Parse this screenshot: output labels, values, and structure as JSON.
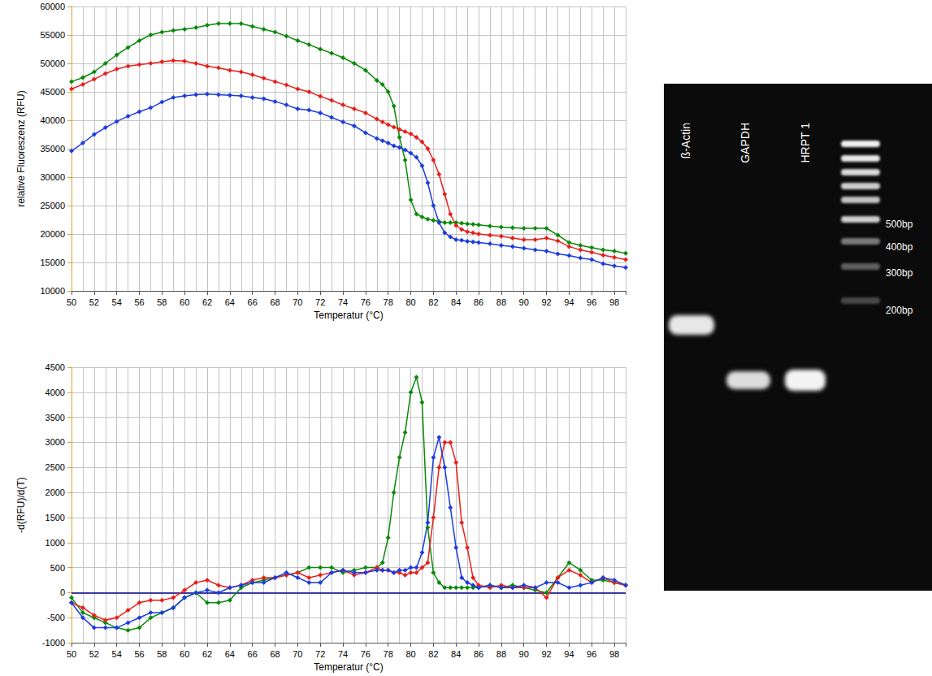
{
  "chart_data": [
    {
      "type": "line",
      "x_label": "Temperatur (°C)",
      "y_label": "relative Fluoreszenz (RFU)",
      "marker": "diamond",
      "grid": true,
      "xlim": [
        50,
        99
      ],
      "xticks": [
        50,
        52,
        54,
        56,
        58,
        60,
        62,
        64,
        66,
        68,
        70,
        72,
        74,
        76,
        78,
        80,
        82,
        84,
        86,
        88,
        90,
        92,
        94,
        96,
        98
      ],
      "ylim": [
        10000,
        60000
      ],
      "yticks": [
        10000,
        15000,
        20000,
        25000,
        30000,
        35000,
        40000,
        45000,
        50000,
        55000,
        60000
      ],
      "x": [
        50,
        51,
        52,
        53,
        54,
        55,
        56,
        57,
        58,
        59,
        60,
        61,
        62,
        63,
        64,
        65,
        66,
        67,
        68,
        69,
        70,
        71,
        72,
        73,
        74,
        75,
        76,
        77,
        77.5,
        78,
        78.5,
        79,
        79.5,
        80,
        80.5,
        81,
        81.5,
        82,
        82.5,
        83,
        83.5,
        84,
        84.5,
        85,
        85.5,
        86,
        87,
        88,
        89,
        90,
        91,
        92,
        93,
        94,
        95,
        96,
        97,
        98,
        99
      ],
      "series": [
        {
          "color": "#0a8a0a",
          "values": [
            46800,
            47500,
            48500,
            50000,
            51500,
            52800,
            54000,
            55000,
            55500,
            55800,
            56000,
            56300,
            56700,
            57000,
            57000,
            57000,
            56500,
            56000,
            55500,
            54800,
            54000,
            53300,
            52500,
            51800,
            51000,
            50000,
            48800,
            47000,
            46300,
            45000,
            42500,
            37000,
            33000,
            26000,
            23500,
            23000,
            22600,
            22400,
            22200,
            22000,
            22000,
            22000,
            21900,
            21800,
            21700,
            21600,
            21400,
            21200,
            21100,
            21000,
            21000,
            21000,
            19800,
            18500,
            18000,
            17600,
            17200,
            17000,
            16600
          ]
        },
        {
          "color": "#e8201c",
          "values": [
            45500,
            46300,
            47200,
            48200,
            49000,
            49500,
            49800,
            50000,
            50300,
            50500,
            50400,
            50000,
            49500,
            49200,
            48800,
            48500,
            48000,
            47400,
            46800,
            46200,
            45500,
            45000,
            44200,
            43500,
            42700,
            42000,
            41300,
            40200,
            39700,
            39200,
            38800,
            38400,
            38000,
            37600,
            37000,
            36200,
            35000,
            33000,
            30500,
            27000,
            23500,
            21500,
            20800,
            20400,
            20200,
            20000,
            19800,
            19600,
            19300,
            19000,
            19000,
            19300,
            18800,
            17800,
            17200,
            16800,
            16300,
            15900,
            15500
          ]
        },
        {
          "color": "#1c3ce0",
          "values": [
            34600,
            36000,
            37500,
            38700,
            39800,
            40700,
            41500,
            42200,
            43200,
            44000,
            44300,
            44500,
            44600,
            44500,
            44400,
            44300,
            44000,
            43800,
            43300,
            42700,
            42000,
            41800,
            41300,
            40500,
            39700,
            39000,
            37800,
            36800,
            36400,
            36000,
            35500,
            35200,
            34800,
            34200,
            33500,
            32000,
            29000,
            25000,
            22000,
            20200,
            19500,
            19000,
            18900,
            18700,
            18600,
            18500,
            18300,
            18000,
            17800,
            17500,
            17200,
            17000,
            16500,
            16200,
            15800,
            15500,
            14800,
            14400,
            14100
          ]
        }
      ]
    },
    {
      "type": "line",
      "x_label": "Temperatur (°C)",
      "y_label": "-d(RFU)/d(T)",
      "marker": "diamond",
      "grid": true,
      "hline": 0,
      "xlim": [
        50,
        99
      ],
      "xticks": [
        50,
        52,
        54,
        56,
        58,
        60,
        62,
        64,
        66,
        68,
        70,
        72,
        74,
        76,
        78,
        80,
        82,
        84,
        86,
        88,
        90,
        92,
        94,
        96,
        98
      ],
      "ylim": [
        -1000,
        4500
      ],
      "yticks": [
        -1000,
        -500,
        0,
        500,
        1000,
        1500,
        2000,
        2500,
        3000,
        3500,
        4000,
        4500
      ],
      "x": [
        50,
        51,
        52,
        53,
        54,
        55,
        56,
        57,
        58,
        59,
        60,
        61,
        62,
        63,
        64,
        65,
        66,
        67,
        68,
        69,
        70,
        71,
        72,
        73,
        74,
        75,
        76,
        77,
        77.5,
        78,
        78.5,
        79,
        79.5,
        80,
        80.5,
        81,
        81.5,
        82,
        82.5,
        83,
        83.5,
        84,
        84.5,
        85,
        85.5,
        86,
        87,
        88,
        89,
        90,
        91,
        92,
        93,
        94,
        95,
        96,
        97,
        98,
        99
      ],
      "series": [
        {
          "color": "#0a8a0a",
          "values": [
            -100,
            -400,
            -500,
            -600,
            -700,
            -750,
            -700,
            -500,
            -400,
            -300,
            -100,
            0,
            -200,
            -200,
            -150,
            100,
            200,
            250,
            300,
            350,
            400,
            500,
            500,
            500,
            400,
            450,
            500,
            500,
            600,
            1100,
            2000,
            2700,
            3200,
            4000,
            4300,
            3800,
            1300,
            400,
            200,
            100,
            100,
            100,
            100,
            100,
            100,
            100,
            150,
            100,
            150,
            100,
            50,
            0,
            300,
            600,
            450,
            250,
            250,
            200,
            150
          ]
        },
        {
          "color": "#e8201c",
          "values": [
            -200,
            -300,
            -450,
            -550,
            -500,
            -350,
            -200,
            -150,
            -150,
            -100,
            50,
            200,
            250,
            150,
            100,
            150,
            250,
            300,
            300,
            350,
            400,
            300,
            350,
            400,
            450,
            350,
            400,
            500,
            450,
            450,
            400,
            400,
            350,
            400,
            400,
            500,
            600,
            1500,
            2500,
            3000,
            3000,
            2600,
            1400,
            900,
            300,
            150,
            100,
            150,
            100,
            100,
            100,
            -100,
            300,
            450,
            350,
            200,
            300,
            200,
            150
          ]
        },
        {
          "color": "#1c3ce0",
          "values": [
            -200,
            -500,
            -700,
            -700,
            -700,
            -600,
            -500,
            -400,
            -400,
            -300,
            -100,
            0,
            50,
            0,
            100,
            150,
            200,
            200,
            300,
            400,
            300,
            200,
            200,
            400,
            450,
            400,
            400,
            450,
            450,
            450,
            400,
            450,
            450,
            500,
            500,
            800,
            1400,
            2700,
            3100,
            2500,
            1700,
            900,
            300,
            200,
            150,
            100,
            150,
            100,
            100,
            150,
            100,
            200,
            200,
            100,
            150,
            200,
            300,
            250,
            150
          ]
        }
      ]
    }
  ],
  "gel": {
    "lanes": [
      "ß-Actin",
      "GAPDH",
      "HRPT 1"
    ],
    "ladder_labels": [
      "500bp",
      "400bp",
      "300bp",
      "200bp"
    ]
  }
}
